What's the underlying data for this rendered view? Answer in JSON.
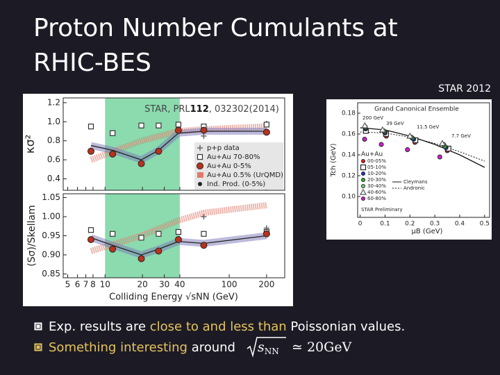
{
  "slide": {
    "title_lines": [
      "Proton Number Cumulants at",
      "RHIC-BES"
    ],
    "citation": {
      "prefix": "STAR, PRL",
      "volume": "112",
      "suffix": ", 032302(2014)"
    },
    "right_label": "STAR 2012",
    "bullets": [
      {
        "parts": [
          "Exp. results are ",
          "close to and less than",
          " Poissonian values."
        ]
      },
      {
        "parts": [
          "Something interesting",
          " around "
        ],
        "formula": {
          "base": "s",
          "sub": "NN",
          "rest": "≃ 20GeV"
        }
      }
    ]
  },
  "left_chart": {
    "type": "scatter",
    "x_label": "Colliding Energy √sNN (GeV)",
    "log_x": true,
    "xlim": [
      4.6,
      280
    ],
    "xticks": [
      5,
      6,
      7,
      8,
      10,
      20,
      30,
      40,
      100,
      200
    ],
    "highlight_xlim": [
      10,
      40
    ],
    "panels": [
      {
        "y_label": "κσ²",
        "ylim": [
          0.28,
          1.25
        ],
        "yticks": [
          {
            "value": 0.4,
            "label": "0.4"
          },
          {
            "value": 0.6,
            "label": "0.6"
          },
          {
            "value": 0.8,
            "label": "0.8"
          },
          {
            "value": 1.0,
            "label": "1.0"
          },
          {
            "value": 1.2,
            "label": "1.2"
          }
        ],
        "series": [
          {
            "name": "p+p data",
            "color": "#666666",
            "marker": "cross",
            "x": [
              62.4,
              200
            ],
            "values": [
              0.85,
              0.98
            ]
          },
          {
            "name": "Au+Au 70-80%",
            "color": "#333333",
            "marker": "square",
            "x": [
              7.7,
              11.5,
              19.6,
              27,
              39,
              62.4,
              200
            ],
            "values": [
              0.95,
              0.88,
              0.96,
              0.96,
              0.97,
              0.95,
              0.97
            ]
          },
          {
            "name": "Au+Au 0-5%",
            "color": "#b8321e",
            "marker": "circle",
            "x": [
              7.7,
              11.5,
              19.6,
              27,
              39,
              62.4,
              200
            ],
            "values": [
              0.69,
              0.66,
              0.56,
              0.69,
              0.91,
              0.91,
              0.89
            ]
          },
          {
            "name": "Au+Au 0.5% (UrQMD)",
            "color": "#e07a6a",
            "marker": "band",
            "x": [
              7.7,
              19.6,
              39,
              62.4,
              200
            ],
            "values": [
              0.6,
              0.8,
              0.9,
              0.92,
              0.95
            ]
          },
          {
            "name": "Ind. Prod. (0-5%)",
            "color": "#222222",
            "marker": "line",
            "x": [
              7.7,
              11.5,
              19.6,
              27,
              39,
              62.4,
              200
            ],
            "values": [
              0.75,
              0.7,
              0.6,
              0.7,
              0.88,
              0.9,
              0.9
            ]
          }
        ]
      },
      {
        "y_label": "(Sσ)/Skellam",
        "ylim": [
          0.84,
          1.06
        ],
        "yticks": [
          {
            "value": 0.85,
            "label": "0.85"
          },
          {
            "value": 0.9,
            "label": "0.90"
          },
          {
            "value": 0.95,
            "label": "0.95"
          },
          {
            "value": 1.0,
            "label": "1.00"
          },
          {
            "value": 1.05,
            "label": "1.05"
          }
        ],
        "series": [
          {
            "color": "#666666",
            "marker": "cross",
            "x": [
              62.4,
              200
            ],
            "values": [
              1.0,
              0.97
            ]
          },
          {
            "color": "#333333",
            "marker": "square",
            "x": [
              7.7,
              11.5,
              19.6,
              27,
              39,
              62.4,
              200
            ],
            "values": [
              0.965,
              0.955,
              0.945,
              0.955,
              0.96,
              0.955,
              0.96
            ]
          },
          {
            "color": "#b8321e",
            "marker": "circle",
            "x": [
              7.7,
              11.5,
              19.6,
              27,
              39,
              62.4,
              200
            ],
            "values": [
              0.94,
              0.915,
              0.89,
              0.91,
              0.94,
              0.925,
              0.955
            ]
          },
          {
            "color": "#e07a6a",
            "marker": "band",
            "x": [
              7.7,
              19.6,
              39,
              62.4,
              200
            ],
            "values": [
              0.91,
              0.95,
              0.99,
              1.01,
              1.03
            ]
          },
          {
            "color": "#222222",
            "marker": "line",
            "x": [
              7.7,
              11.5,
              19.6,
              27,
              39,
              62.4,
              200
            ],
            "values": [
              0.945,
              0.925,
              0.9,
              0.915,
              0.935,
              0.93,
              0.95
            ]
          }
        ]
      }
    ]
  },
  "right_chart": {
    "type": "scatter",
    "title": "Grand Canonical Ensemble",
    "x_label": "μB (GeV)",
    "y_label": "Tch (GeV)",
    "xlim": [
      -0.01,
      0.52
    ],
    "xticks": [
      0,
      {
        "value": 0.1,
        "label": "0.1"
      },
      {
        "value": 0.2,
        "label": "0.2"
      },
      {
        "value": 0.3,
        "label": "0.3"
      },
      {
        "value": 0.4,
        "label": "0.4"
      },
      {
        "value": 0.5,
        "label": "0.5"
      }
    ],
    "ylim": [
      0.08,
      0.19
    ],
    "yticks": [
      {
        "value": 0.1,
        "label": "0.10"
      },
      {
        "value": 0.12,
        "label": "0.12"
      },
      {
        "value": 0.14,
        "label": "0.14"
      },
      {
        "value": 0.16,
        "label": "0.16"
      },
      {
        "value": 0.18,
        "label": "0.18"
      }
    ],
    "energy_labels": [
      "200 GeV",
      "39 GeV",
      "11.5 GeV",
      "7.7 GeV"
    ],
    "legend_title": "Au+Au",
    "note": "STAR Preliminary",
    "series": [
      {
        "name": "00-05%",
        "color": "#e02020",
        "marker": "circle",
        "x": [
          0.024,
          0.105,
          0.22,
          0.35
        ],
        "values": [
          0.164,
          0.158,
          0.152,
          0.144
        ]
      },
      {
        "name": "05-10%",
        "color": "#222222",
        "marker": "square",
        "x": [
          0.023,
          0.104,
          0.222,
          0.355
        ],
        "values": [
          0.163,
          0.16,
          0.154,
          0.146
        ]
      },
      {
        "name": "10-20%",
        "color": "#2030d0",
        "marker": "circle",
        "x": [
          0.022,
          0.1,
          0.215,
          0.345
        ],
        "values": [
          0.165,
          0.161,
          0.155,
          0.147
        ]
      },
      {
        "name": "20-30%",
        "color": "#30b030",
        "marker": "circle",
        "x": [
          0.021,
          0.098,
          0.21,
          0.34
        ],
        "values": [
          0.166,
          0.162,
          0.156,
          0.148
        ]
      },
      {
        "name": "30-40%",
        "color": "#7ad07a",
        "marker": "circle",
        "x": [
          0.02,
          0.095,
          0.205,
          0.335
        ],
        "values": [
          0.167,
          0.163,
          0.157,
          0.15
        ]
      },
      {
        "name": "40-60%",
        "color": "#555555",
        "marker": "triangle",
        "x": [
          0.019,
          0.09,
          0.2,
          0.33
        ],
        "values": [
          0.168,
          0.164,
          0.158,
          0.151
        ]
      },
      {
        "name": "60-80%",
        "color": "#d020d0",
        "marker": "circle",
        "x": [
          0.018,
          0.085,
          0.19,
          0.32
        ],
        "values": [
          0.155,
          0.15,
          0.145,
          0.138
        ]
      },
      {
        "name": "Cleymans",
        "color": "#111111",
        "marker": "line",
        "x": [
          0,
          0.1,
          0.2,
          0.3,
          0.4,
          0.5
        ],
        "values": [
          0.166,
          0.164,
          0.158,
          0.15,
          0.14,
          0.128
        ]
      },
      {
        "name": "Andronic",
        "color": "#111111",
        "marker": "dotted",
        "x": [
          0,
          0.1,
          0.2,
          0.3,
          0.4,
          0.5
        ],
        "values": [
          0.162,
          0.161,
          0.157,
          0.151,
          0.143,
          0.134
        ]
      }
    ]
  }
}
